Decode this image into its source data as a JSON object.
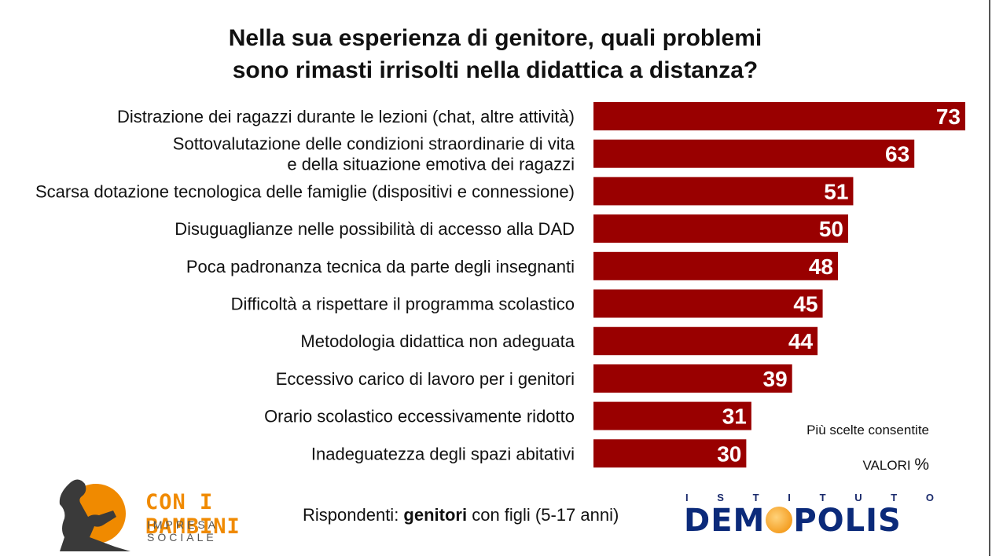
{
  "title": {
    "line1": "Nella sua esperienza di genitore, quali problemi",
    "line2": "sono rimasti irrisolti nella didattica a distanza?"
  },
  "chart_data": {
    "type": "bar",
    "orientation": "horizontal",
    "title": "Nella sua esperienza di genitore, quali problemi sono rimasti irrisolti nella didattica a distanza?",
    "categories": [
      [
        "Distrazione dei ragazzi durante le lezioni (chat, altre attività)"
      ],
      [
        "Sottovalutazione delle condizioni straordinarie di vita",
        "e della situazione emotiva dei ragazzi"
      ],
      [
        "Scarsa dotazione tecnologica delle famiglie (dispositivi e connessione)"
      ],
      [
        "Disuguaglianze nelle possibilità di accesso alla DAD"
      ],
      [
        "Poca padronanza tecnica da parte degli insegnanti"
      ],
      [
        "Difficoltà a rispettare il programma scolastico"
      ],
      [
        "Metodologia didattica non adeguata"
      ],
      [
        "Eccessivo carico di lavoro per i genitori"
      ],
      [
        "Orario scolastico eccessivamente ridotto"
      ],
      [
        "Inadeguatezza degli spazi abitativi"
      ]
    ],
    "values": [
      73,
      63,
      51,
      50,
      48,
      45,
      44,
      39,
      31,
      30
    ],
    "bar_color": "#990000",
    "xlim": [
      0,
      73
    ]
  },
  "notes": {
    "multiple": "Più scelte consentite",
    "valori": "VALORI",
    "pct": "%"
  },
  "respondents": {
    "prefix": "Rispondenti: ",
    "bold": "genitori",
    "suffix": " con figli (5-17 anni)"
  },
  "logo_left": {
    "name": "CON I BAMBINI",
    "sub": "IMPRESA SOCIALE",
    "accent": "#f08a00"
  },
  "logo_right": {
    "istituto": [
      "I",
      "S",
      "T",
      "I",
      "T",
      "U",
      "T",
      "O"
    ],
    "name_a": "DEM",
    "name_b": "POLIS",
    "color": "#0b2a7a"
  }
}
